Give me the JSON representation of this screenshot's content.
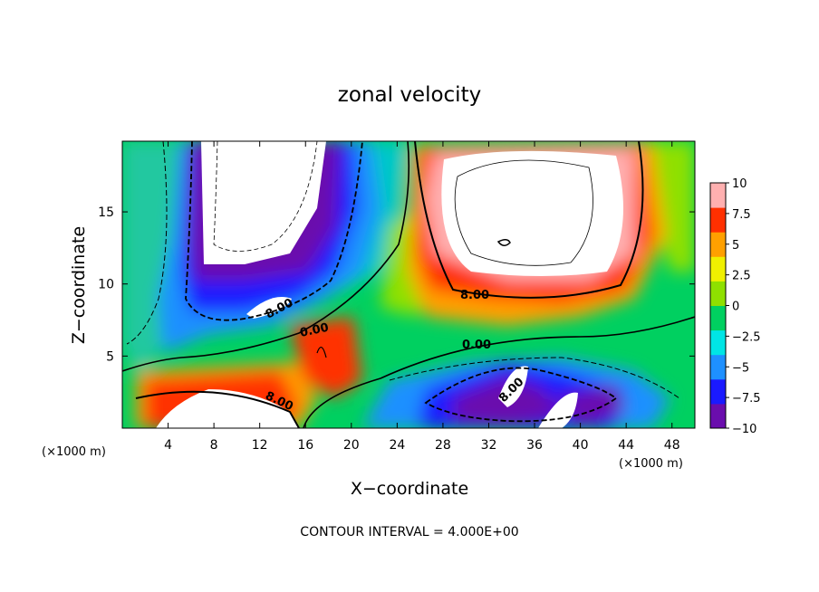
{
  "chart_data": {
    "type": "contour",
    "title": "zonal velocity",
    "xlabel": "X−coordinate",
    "ylabel": "Z−coordinate",
    "x_unit": "(×1000 m)",
    "z_unit": "(×1000 m)",
    "xlim": [
      0,
      50
    ],
    "ylim": [
      0,
      19.9
    ],
    "x_ticks": [
      4,
      8,
      12,
      16,
      20,
      24,
      28,
      32,
      36,
      40,
      44,
      48
    ],
    "y_ticks": [
      5,
      10,
      15
    ],
    "colorbar": {
      "range": [
        -10,
        10
      ],
      "ticks": [
        "10",
        "7.5",
        "5",
        "2.5",
        "0",
        "−2.5",
        "−5",
        "−7.5",
        "−10"
      ],
      "colors": [
        "#6a0dad",
        "#1a1aff",
        "#1e90ff",
        "#00e5e5",
        "#00d060",
        "#8fe000",
        "#f0f000",
        "#ffa000",
        "#ff3000",
        "#ffb0b0"
      ]
    },
    "contour_labels": [
      "8.00",
      "0.00",
      "0.00",
      "8.00",
      "8.00",
      "8.00"
    ],
    "footer": "CONTOUR INTERVAL = 4.000E+00"
  }
}
